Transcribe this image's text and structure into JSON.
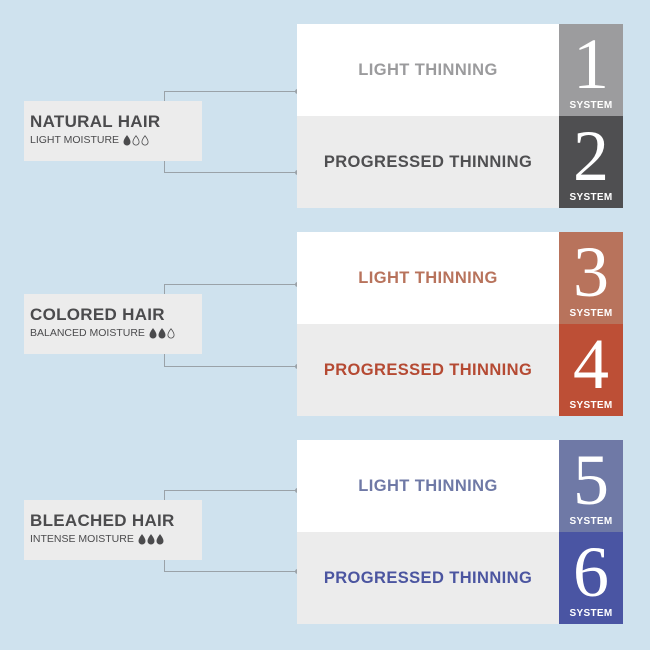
{
  "groups": [
    {
      "type": "NATURAL HAIR",
      "moisture": "LIGHT MOISTURE",
      "drops_filled": 1,
      "rows": [
        {
          "label": "LIGHT THINNING",
          "label_color": "#9b9b9d",
          "number": "1",
          "system": "SYSTEM",
          "system_color": "#9c9c9e"
        },
        {
          "label": "PROGRESSED THINNING",
          "label_color": "#4f4f51",
          "number": "2",
          "system": "SYSTEM",
          "system_color": "#4f4f51"
        }
      ]
    },
    {
      "type": "COLORED HAIR",
      "moisture": "BALANCED MOISTURE",
      "drops_filled": 2,
      "rows": [
        {
          "label": "LIGHT THINNING",
          "label_color": "#b8735c",
          "number": "3",
          "system": "SYSTEM",
          "system_color": "#b8735c"
        },
        {
          "label": "PROGRESSED THINNING",
          "label_color": "#b54a33",
          "number": "4",
          "system": "SYSTEM",
          "system_color": "#bd4f36"
        }
      ]
    },
    {
      "type": "BLEACHED HAIR",
      "moisture": "INTENSE MOISTURE",
      "drops_filled": 3,
      "rows": [
        {
          "label": "LIGHT THINNING",
          "label_color": "#6f79a6",
          "number": "5",
          "system": "SYSTEM",
          "system_color": "#6f79a6"
        },
        {
          "label": "PROGRESSED THINNING",
          "label_color": "#4b55a0",
          "number": "6",
          "system": "SYSTEM",
          "system_color": "#4a55a3"
        }
      ]
    }
  ]
}
